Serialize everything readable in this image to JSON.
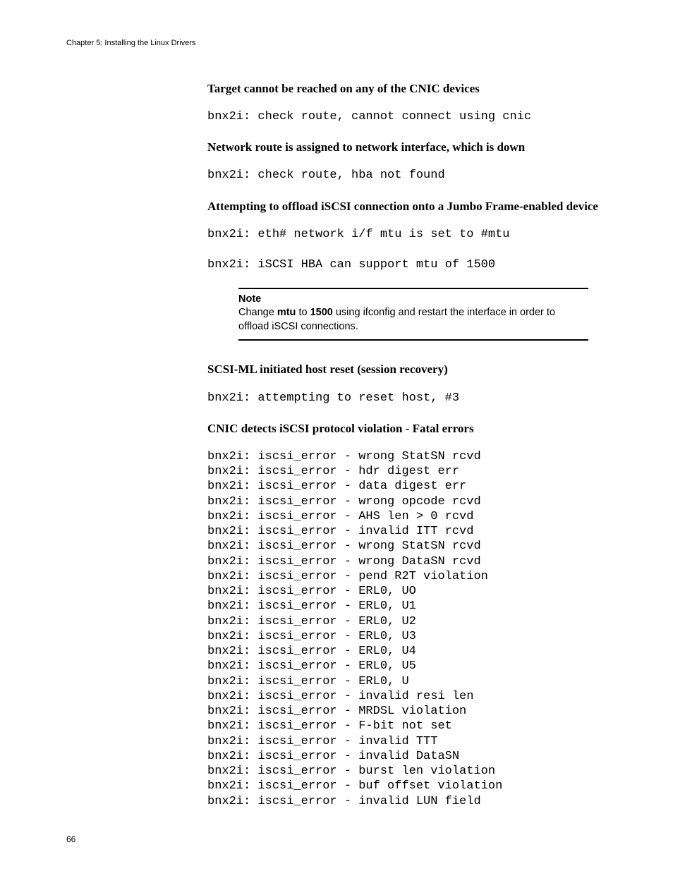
{
  "header": {
    "text": "Chapter 5: Installing the Linux Drivers"
  },
  "pageNumber": "66",
  "sections": {
    "s1": {
      "heading": "Target cannot be reached on any of the CNIC devices",
      "code": "bnx2i: check route, cannot connect using cnic"
    },
    "s2": {
      "heading": "Network route is assigned to network interface, which is down",
      "code": "bnx2i: check route, hba not found"
    },
    "s3": {
      "heading": "Attempting to offload iSCSI connection onto a Jumbo Frame-enabled device",
      "code1": "bnx2i: eth# network i/f mtu is set to #mtu",
      "code2": "bnx2i: iSCSI HBA can support mtu of 1500"
    },
    "note": {
      "label": "Note",
      "pre": "Change ",
      "b1": "mtu",
      "mid": " to ",
      "b2": "1500",
      "post": " using ifconfig and restart the interface in order to offload iSCSI connections."
    },
    "s4": {
      "heading": "SCSI-ML initiated host reset (session recovery)",
      "code": "bnx2i: attempting to reset host, #3"
    },
    "s5": {
      "heading": "CNIC detects iSCSI protocol violation - Fatal errors",
      "code": "bnx2i: iscsi_error - wrong StatSN rcvd\nbnx2i: iscsi_error - hdr digest err\nbnx2i: iscsi_error - data digest err\nbnx2i: iscsi_error - wrong opcode rcvd\nbnx2i: iscsi_error - AHS len > 0 rcvd\nbnx2i: iscsi_error - invalid ITT rcvd\nbnx2i: iscsi_error - wrong StatSN rcvd\nbnx2i: iscsi_error - wrong DataSN rcvd\nbnx2i: iscsi_error - pend R2T violation\nbnx2i: iscsi_error - ERL0, UO\nbnx2i: iscsi_error - ERL0, U1\nbnx2i: iscsi_error - ERL0, U2\nbnx2i: iscsi_error - ERL0, U3\nbnx2i: iscsi_error - ERL0, U4\nbnx2i: iscsi_error - ERL0, U5\nbnx2i: iscsi_error - ERL0, U\nbnx2i: iscsi_error - invalid resi len\nbnx2i: iscsi_error - MRDSL violation\nbnx2i: iscsi_error - F-bit not set\nbnx2i: iscsi_error - invalid TTT\nbnx2i: iscsi_error - invalid DataSN\nbnx2i: iscsi_error - burst len violation\nbnx2i: iscsi_error - buf offset violation\nbnx2i: iscsi_error - invalid LUN field"
    }
  }
}
